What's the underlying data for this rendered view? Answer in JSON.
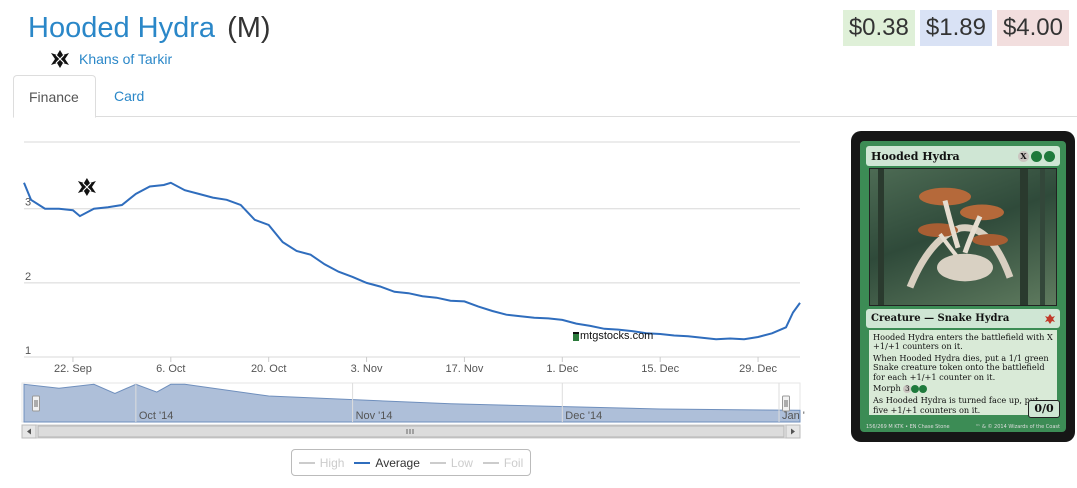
{
  "card": {
    "name": "Hooded Hydra",
    "rarity": "(M)",
    "set_name": "Khans of Tarkir"
  },
  "prices": {
    "low": "$0.38",
    "average": "$1.89",
    "high": "$4.00",
    "low_color": "#dff0d8",
    "average_color": "#d9e2f5",
    "high_color": "#f2dede"
  },
  "tabs": [
    {
      "label": "Finance",
      "active": true
    },
    {
      "label": "Card",
      "active": false
    }
  ],
  "chart_data": {
    "type": "line",
    "ylim": [
      1,
      3.9
    ],
    "yticks": [
      1,
      2,
      3
    ],
    "ytick_labels": [
      "1",
      "2",
      "3"
    ],
    "xticks": [
      "2014-09-22",
      "2014-10-06",
      "2014-10-20",
      "2014-11-03",
      "2014-11-17",
      "2014-12-01",
      "2014-12-15",
      "2014-12-29"
    ],
    "xtick_labels": [
      "22. Sep",
      "6. Oct",
      "20. Oct",
      "3. Nov",
      "17. Nov",
      "1. Dec",
      "15. Dec",
      "29. Dec"
    ],
    "grid": true,
    "legend_position": "bottom",
    "series": [
      {
        "name": "Average",
        "color": "#2f6dbd",
        "x": [
          "2014-09-15",
          "2014-09-16",
          "2014-09-18",
          "2014-09-20",
          "2014-09-22",
          "2014-09-23",
          "2014-09-25",
          "2014-09-27",
          "2014-09-29",
          "2014-10-01",
          "2014-10-03",
          "2014-10-05",
          "2014-10-06",
          "2014-10-08",
          "2014-10-10",
          "2014-10-12",
          "2014-10-14",
          "2014-10-16",
          "2014-10-18",
          "2014-10-20",
          "2014-10-22",
          "2014-10-24",
          "2014-10-26",
          "2014-10-28",
          "2014-10-30",
          "2014-11-01",
          "2014-11-03",
          "2014-11-05",
          "2014-11-07",
          "2014-11-09",
          "2014-11-11",
          "2014-11-13",
          "2014-11-15",
          "2014-11-17",
          "2014-11-19",
          "2014-11-21",
          "2014-11-23",
          "2014-11-25",
          "2014-11-27",
          "2014-11-29",
          "2014-12-01",
          "2014-12-03",
          "2014-12-05",
          "2014-12-07",
          "2014-12-09",
          "2014-12-11",
          "2014-12-13",
          "2014-12-15",
          "2014-12-17",
          "2014-12-19",
          "2014-12-21",
          "2014-12-23",
          "2014-12-25",
          "2014-12-27",
          "2014-12-29",
          "2014-12-31",
          "2015-01-02",
          "2015-01-03",
          "2015-01-04"
        ],
        "values": [
          3.35,
          3.12,
          3.0,
          3.0,
          2.98,
          2.9,
          3.0,
          3.02,
          3.05,
          3.2,
          3.3,
          3.32,
          3.35,
          3.25,
          3.2,
          3.15,
          3.12,
          3.05,
          2.85,
          2.78,
          2.55,
          2.43,
          2.38,
          2.25,
          2.15,
          2.08,
          2.0,
          1.95,
          1.88,
          1.86,
          1.82,
          1.8,
          1.76,
          1.75,
          1.68,
          1.62,
          1.57,
          1.55,
          1.53,
          1.52,
          1.5,
          1.45,
          1.42,
          1.38,
          1.37,
          1.35,
          1.32,
          1.31,
          1.29,
          1.28,
          1.26,
          1.24,
          1.25,
          1.24,
          1.27,
          1.32,
          1.4,
          1.6,
          1.73
        ]
      },
      {
        "name": "High",
        "visible": false
      },
      {
        "name": "Low",
        "visible": false
      },
      {
        "name": "Foil",
        "visible": false
      }
    ],
    "navigator": {
      "month_labels": [
        "Oct '14",
        "Nov '14",
        "Dec '14",
        "Jan '15"
      ],
      "x": [
        "2014-09-15",
        "2014-09-20",
        "2014-09-25",
        "2014-09-28",
        "2014-10-01",
        "2014-10-04",
        "2014-10-06",
        "2014-10-08",
        "2014-10-20",
        "2014-11-15",
        "2014-12-15",
        "2015-01-04"
      ],
      "values": [
        3.9,
        3.6,
        3.9,
        3.2,
        3.9,
        3.3,
        3.9,
        3.9,
        3.0,
        2.4,
        2.0,
        1.9
      ],
      "ylim": [
        1,
        4
      ]
    }
  },
  "watermark": "mtgstocks.com",
  "legend": {
    "items": [
      {
        "label": "High",
        "active": false
      },
      {
        "label": "Average",
        "active": true
      },
      {
        "label": "Low",
        "active": false
      },
      {
        "label": "Foil",
        "active": false
      }
    ]
  },
  "card_image": {
    "name": "Hooded Hydra",
    "type_line": "Creature — Snake Hydra",
    "rules_text": [
      "Hooded Hydra enters the battlefield with X +1/+1 counters on it.",
      "When Hooded Hydra dies, put a 1/1 green Snake creature token onto the battlefield for each +1/+1 counter on it.",
      "Morph",
      "As Hooded Hydra is turned face up, put five +1/+1 counters on it."
    ],
    "power_toughness": "0/0",
    "collector_info": "156/269 M",
    "set_line": "KTK • EN",
    "artist": "Chase Stone",
    "copyright": "™ & © 2014 Wizards of the Coast",
    "mana_cost": [
      "X",
      "G",
      "G"
    ],
    "morph_cost": [
      "3",
      "G",
      "G"
    ]
  },
  "icons": {
    "set_icon": "khans-of-tarkir-set-icon",
    "flag_icon": "set-release-flag-icon",
    "watermark_icon": "mtgstocks-logo-icon"
  }
}
